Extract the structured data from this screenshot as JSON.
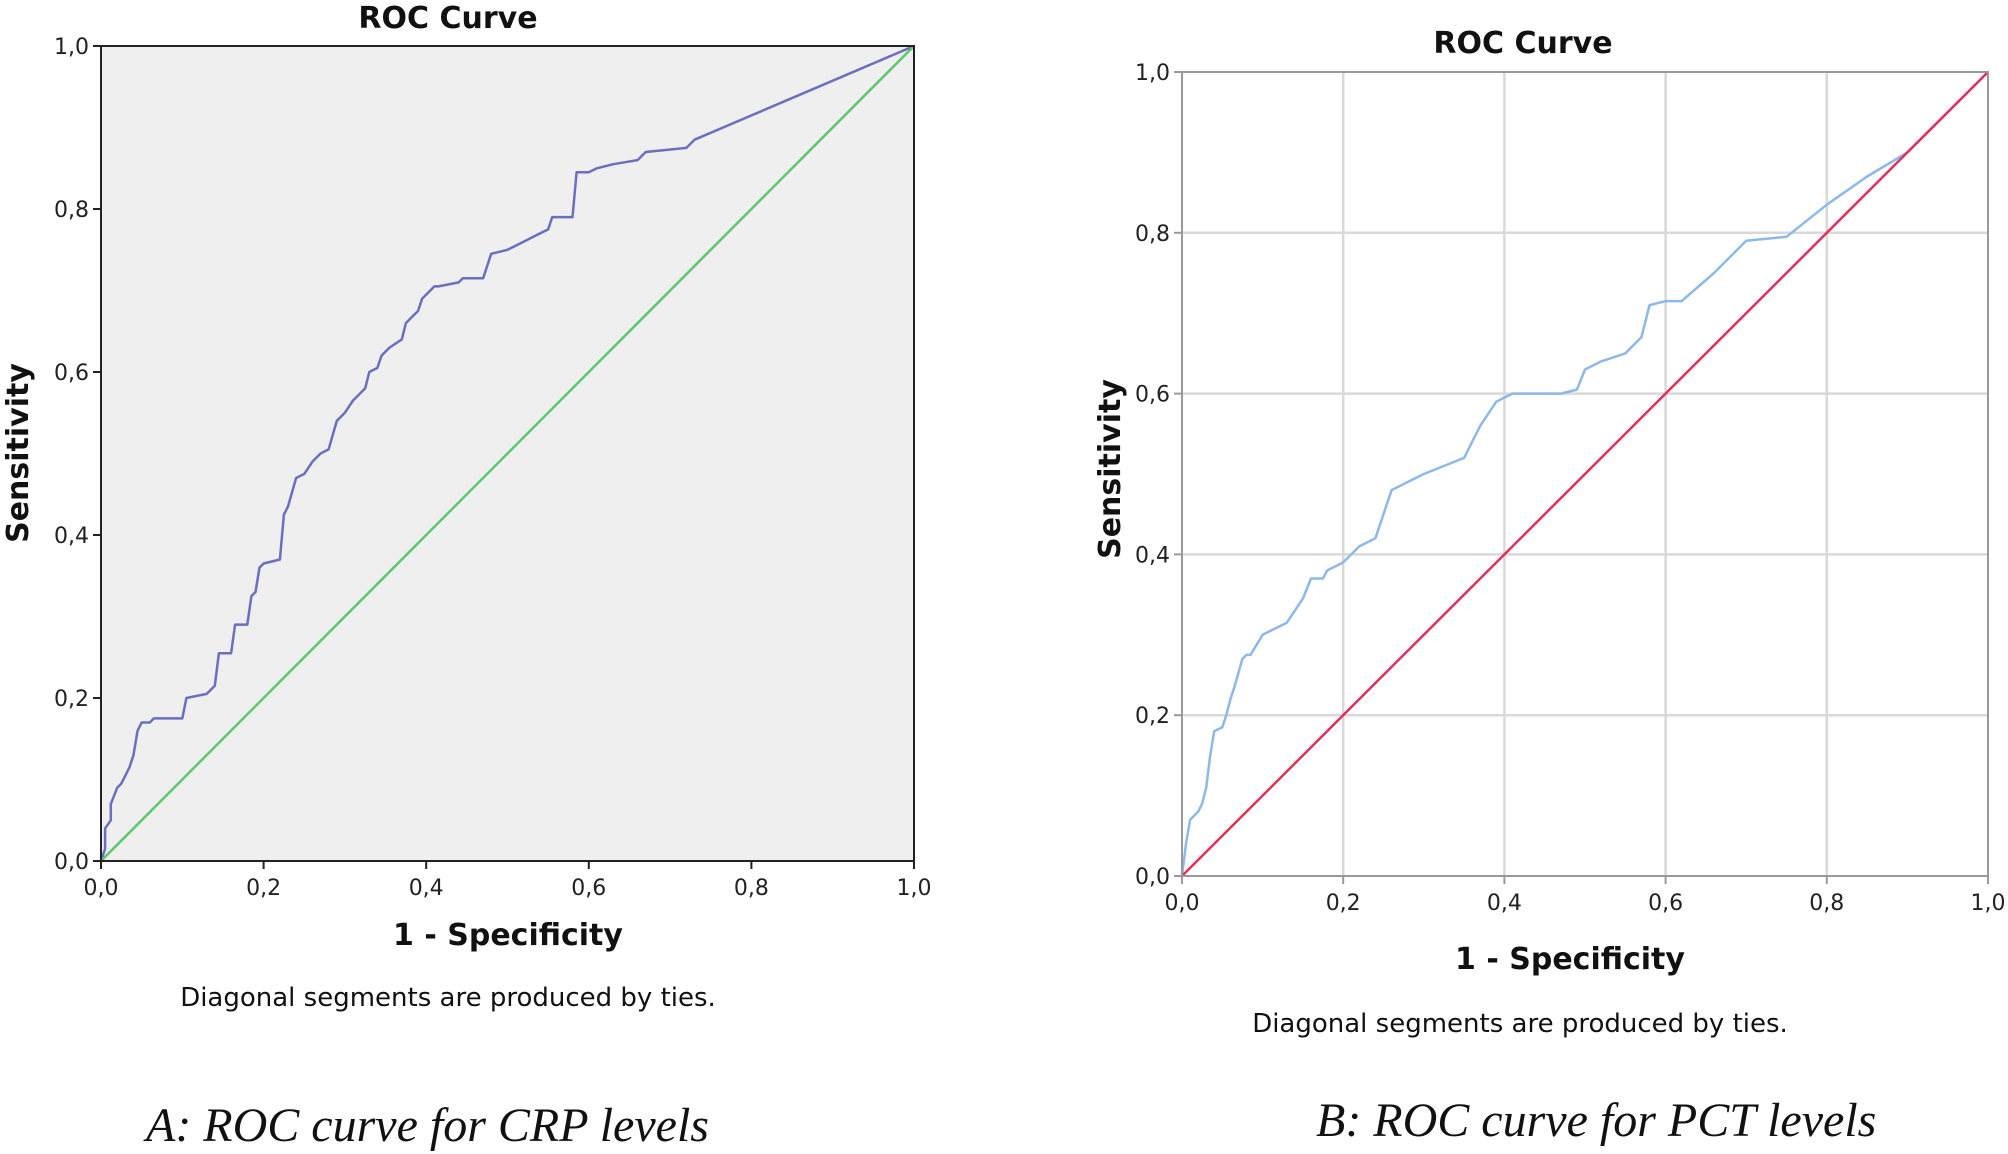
{
  "panels": [
    {
      "title": "ROC Curve",
      "xlabel": "1 - Specificity",
      "ylabel": "Sensitivity",
      "note": "Diagonal segments are produced by ties.",
      "caption": "A: ROC curve for CRP levels"
    },
    {
      "title": "ROC Curve",
      "xlabel": "1 - Specificity",
      "ylabel": "Sensitivity",
      "note": "Diagonal segments are produced by ties.",
      "caption": "B: ROC curve for PCT levels"
    }
  ],
  "chart_data": [
    {
      "type": "line",
      "title": "ROC Curve",
      "xlabel": "1 - Specificity",
      "ylabel": "Sensitivity",
      "xlim": [
        0,
        1
      ],
      "ylim": [
        0,
        1
      ],
      "xticks": [
        "0,0",
        "0,2",
        "0,4",
        "0,6",
        "0,8",
        "1,0"
      ],
      "yticks": [
        "0,0",
        "0,2",
        "0,4",
        "0,6",
        "0,8",
        "1,0"
      ],
      "grid": false,
      "colors": {
        "background": "#efefef",
        "curve": "#6a6fbf",
        "reference": "#5cc86c"
      },
      "series": [
        {
          "x": [
            0,
            0.005,
            0.005,
            0.012,
            0.012,
            0.02,
            0.025,
            0.035,
            0.04,
            0.045,
            0.05,
            0.06,
            0.065,
            0.1,
            0.105,
            0.13,
            0.14,
            0.145,
            0.16,
            0.165,
            0.18,
            0.185,
            0.19,
            0.195,
            0.2,
            0.22,
            0.225,
            0.23,
            0.24,
            0.25,
            0.26,
            0.27,
            0.28,
            0.29,
            0.3,
            0.31,
            0.315,
            0.325,
            0.33,
            0.34,
            0.345,
            0.35,
            0.355,
            0.37,
            0.375,
            0.38,
            0.39,
            0.395,
            0.4,
            0.405,
            0.41,
            0.415,
            0.44,
            0.445,
            0.47,
            0.48,
            0.5,
            0.51,
            0.52,
            0.54,
            0.55,
            0.555,
            0.58,
            0.585,
            0.6,
            0.61,
            0.63,
            0.66,
            0.67,
            0.72,
            0.73,
            1.0
          ],
          "y": [
            0,
            0.015,
            0.04,
            0.05,
            0.07,
            0.09,
            0.095,
            0.115,
            0.13,
            0.16,
            0.17,
            0.17,
            0.175,
            0.175,
            0.2,
            0.205,
            0.215,
            0.255,
            0.255,
            0.29,
            0.29,
            0.325,
            0.33,
            0.36,
            0.365,
            0.37,
            0.425,
            0.435,
            0.47,
            0.475,
            0.49,
            0.5,
            0.505,
            0.54,
            0.55,
            0.565,
            0.57,
            0.58,
            0.6,
            0.605,
            0.62,
            0.625,
            0.63,
            0.64,
            0.66,
            0.665,
            0.675,
            0.69,
            0.695,
            0.7,
            0.705,
            0.705,
            0.71,
            0.715,
            0.715,
            0.745,
            0.75,
            0.755,
            0.76,
            0.77,
            0.775,
            0.79,
            0.79,
            0.845,
            0.845,
            0.85,
            0.855,
            0.86,
            0.87,
            0.875,
            0.885,
            1.0
          ]
        },
        {
          "x": [
            0,
            1
          ],
          "y": [
            0,
            1
          ]
        }
      ]
    },
    {
      "type": "line",
      "title": "ROC Curve",
      "xlabel": "1 - Specificity",
      "ylabel": "Sensitivity",
      "xlim": [
        0,
        1
      ],
      "ylim": [
        0,
        1
      ],
      "xticks": [
        "0,0",
        "0,2",
        "0,4",
        "0,6",
        "0,8",
        "1,0"
      ],
      "yticks": [
        "0,0",
        "0,2",
        "0,4",
        "0,6",
        "0,8",
        "1,0"
      ],
      "grid": true,
      "colors": {
        "background": "#ffffff",
        "curve": "#8cb9e9",
        "reference": "#e0305a",
        "grid": "#d9d9d9"
      },
      "series": [
        {
          "x": [
            0,
            0.005,
            0.01,
            0.015,
            0.02,
            0.025,
            0.03,
            0.035,
            0.04,
            0.05,
            0.055,
            0.06,
            0.065,
            0.075,
            0.08,
            0.085,
            0.1,
            0.11,
            0.13,
            0.14,
            0.15,
            0.16,
            0.165,
            0.175,
            0.18,
            0.2,
            0.22,
            0.24,
            0.25,
            0.26,
            0.28,
            0.3,
            0.35,
            0.37,
            0.38,
            0.39,
            0.41,
            0.43,
            0.47,
            0.49,
            0.5,
            0.52,
            0.55,
            0.57,
            0.58,
            0.6,
            0.62,
            0.66,
            0.7,
            0.75,
            0.8,
            0.85,
            0.9,
            0.95,
            1.0
          ],
          "y": [
            0,
            0.04,
            0.07,
            0.075,
            0.08,
            0.09,
            0.11,
            0.15,
            0.18,
            0.185,
            0.2,
            0.22,
            0.235,
            0.27,
            0.275,
            0.275,
            0.3,
            0.305,
            0.315,
            0.33,
            0.345,
            0.37,
            0.37,
            0.37,
            0.38,
            0.39,
            0.41,
            0.42,
            0.45,
            0.48,
            0.49,
            0.5,
            0.52,
            0.56,
            0.575,
            0.59,
            0.6,
            0.6,
            0.6,
            0.605,
            0.63,
            0.64,
            0.65,
            0.67,
            0.71,
            0.715,
            0.715,
            0.75,
            0.79,
            0.795,
            0.835,
            0.87,
            0.9,
            0.95,
            1.0
          ]
        },
        {
          "x": [
            0,
            1
          ],
          "y": [
            0,
            1
          ]
        }
      ]
    }
  ]
}
